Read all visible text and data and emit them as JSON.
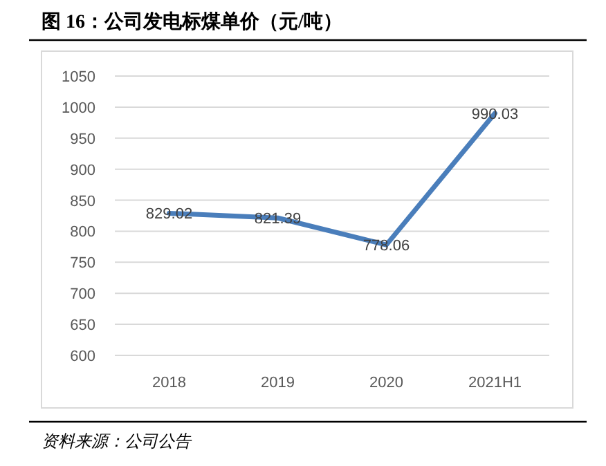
{
  "chart_data": {
    "type": "line",
    "title": "图 16：公司发电标煤单价（元/吨）",
    "categories": [
      "2018",
      "2019",
      "2020",
      "2021H1"
    ],
    "series": [
      {
        "color": "#4a7ebb",
        "values": [
          829.02,
          821.39,
          778.06,
          990.03
        ]
      }
    ],
    "ylim": [
      600,
      1050
    ],
    "yticks": [
      600,
      650,
      700,
      750,
      800,
      850,
      900,
      950,
      1000,
      1050
    ],
    "grid": "y",
    "data_labels": true,
    "marker": "none",
    "line_style": "solid",
    "annotations": [
      "资料来源：公司公告"
    ]
  }
}
